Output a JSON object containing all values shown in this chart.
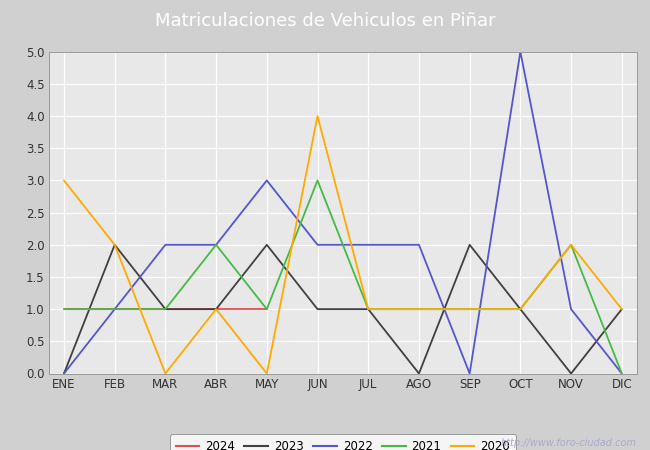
{
  "title": "Matriculaciones de Vehiculos en Piñar",
  "months": [
    "ENE",
    "FEB",
    "MAR",
    "ABR",
    "MAY",
    "JUN",
    "JUL",
    "AGO",
    "SEP",
    "OCT",
    "NOV",
    "DIC"
  ],
  "series": {
    "2024": {
      "values": [
        1,
        1,
        1,
        1,
        1,
        null,
        null,
        null,
        null,
        null,
        null,
        null
      ],
      "color": "#e05050",
      "linewidth": 1.3
    },
    "2023": {
      "values": [
        0,
        2,
        1,
        1,
        2,
        1,
        1,
        0,
        2,
        1,
        0,
        1
      ],
      "color": "#404040",
      "linewidth": 1.3
    },
    "2022": {
      "values": [
        0,
        1,
        2,
        2,
        3,
        2,
        2,
        2,
        0,
        5,
        1,
        0
      ],
      "color": "#5555cc",
      "linewidth": 1.3
    },
    "2021": {
      "values": [
        1,
        1,
        1,
        2,
        1,
        3,
        1,
        1,
        1,
        1,
        2,
        0
      ],
      "color": "#44bb44",
      "linewidth": 1.3
    },
    "2020": {
      "values": [
        3,
        2,
        0,
        1,
        0,
        4,
        1,
        1,
        1,
        1,
        2,
        1
      ],
      "color": "#ffaa00",
      "linewidth": 1.3
    }
  },
  "ylim": [
    0,
    5.0
  ],
  "yticks": [
    0.0,
    0.5,
    1.0,
    1.5,
    2.0,
    2.5,
    3.0,
    3.5,
    4.0,
    4.5,
    5.0
  ],
  "title_fontsize": 13,
  "tick_fontsize": 8.5,
  "legend_fontsize": 8.5,
  "outer_bg_color": "#d0d0d0",
  "plot_bg_color": "#e8e8e8",
  "header_color": "#5588cc",
  "watermark_text": "http://www.foro-ciudad.com",
  "watermark_color": "#aaaacc",
  "years_order": [
    "2024",
    "2023",
    "2022",
    "2021",
    "2020"
  ]
}
